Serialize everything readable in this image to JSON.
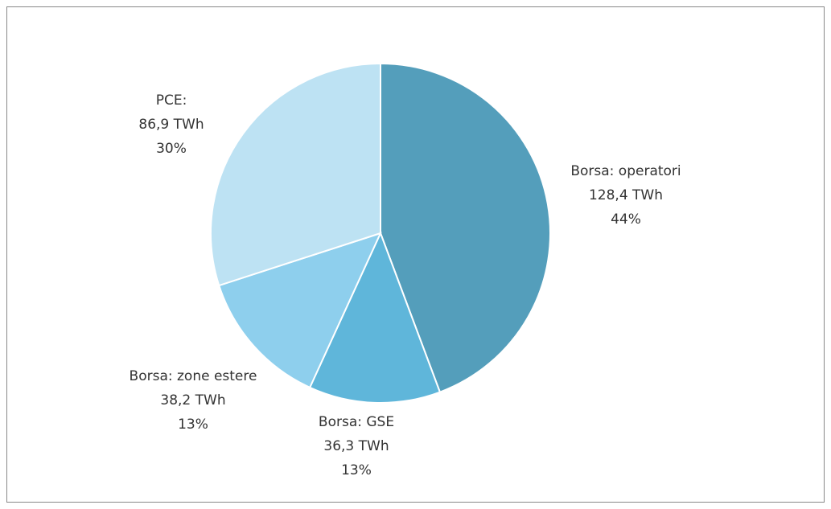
{
  "chart_data": {
    "type": "pie",
    "categories": [
      "Borsa: operatori",
      "Borsa: GSE",
      "Borsa: zone estere",
      "PCE:"
    ],
    "values": [
      128.4,
      36.3,
      38.2,
      86.9
    ],
    "value_labels": [
      "128,4 TWh",
      "36,3 TWh",
      "38,2 TWh",
      "86,9 TWh"
    ],
    "percent_labels": [
      "44%",
      "13%",
      "13%",
      "30%"
    ],
    "colors": [
      "#549ebb",
      "#5fb6da",
      "#8ecfed",
      "#bde2f3"
    ]
  }
}
